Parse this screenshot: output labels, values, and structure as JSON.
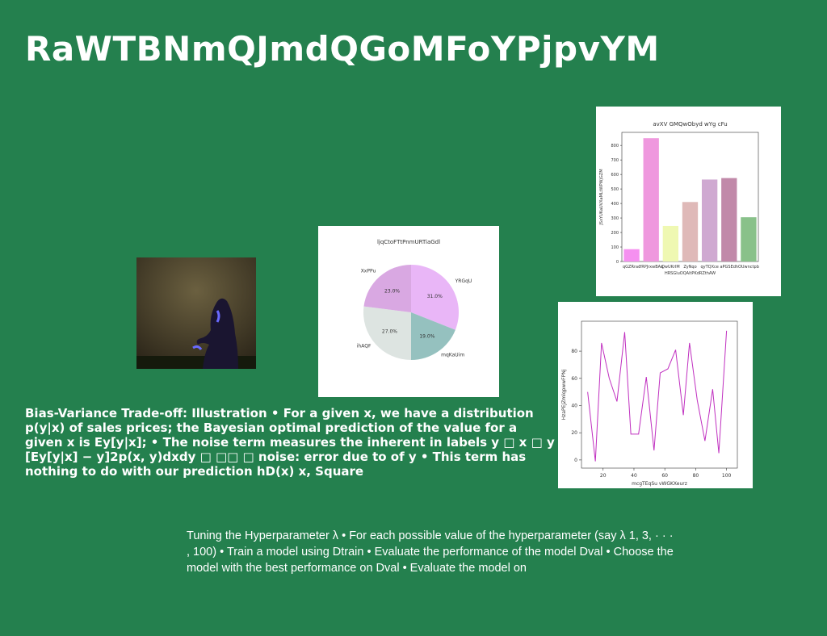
{
  "title": "RaWTBNmQJmdQGoMFoYPjpvYM",
  "text1": "Bias-Variance Trade-off: Illustration • For a given x, we have a distribution p(y|x) of sales prices; the Bayesian optimal prediction of the value for a given x is Ey[y|x]; • The noise term measures the inherent in labels y □ x □ y [Ey[y|x] − y]2p(x, y)dxdy □ □□ □ noise: error due to of y • This term has nothing to do with our prediction hD(x) x, Square",
  "text2": "Tuning the Hyperparameter λ • For each possible value of the hyperparameter (say λ 1, 3, · · · , 100) • Train a model using Dtrain • Evaluate the performance of the model Dval • Choose the model with the best performance on Dval • Evaluate the model on",
  "pie": {
    "type": "pie",
    "title": "ljqCtoFTtPnmURTiaGdl",
    "categories": [
      "YRGqU",
      "mqKaUim",
      "ihAQF",
      "XxPPu"
    ],
    "values": [
      31,
      19,
      27,
      23
    ],
    "value_labels": [
      "31.0%",
      "19.0%",
      "27.0%",
      "23.0%"
    ],
    "colors": [
      "#e9b6f7",
      "#95c1bf",
      "#dde4e1",
      "#d9a8e2"
    ]
  },
  "bar": {
    "type": "bar",
    "title": "avXV GMQwObyd wYg cFu",
    "x_label": "HRSGluOQAltPKdRZthAW",
    "y_label": "JSxYUKaUVXaMLtWPWjGZM",
    "categories": [
      "qGZRrao",
      "YRPJrxwBAq",
      "QwUKrIM",
      "ZyNqo",
      "qyTQXce",
      "aPGSEdh",
      "OUwnctpb"
    ],
    "values": [
      85,
      850,
      245,
      410,
      565,
      575,
      305
    ],
    "colors": [
      "#f590f0",
      "#ef98de",
      "#eff8b2",
      "#dfb9b8",
      "#cfa9d1",
      "#c189a9",
      "#89c18a"
    ],
    "ylim": [
      0,
      890
    ],
    "yticks": [
      0,
      100,
      200,
      300,
      400,
      500,
      600,
      700,
      800
    ]
  },
  "line": {
    "type": "line",
    "x_label": "mcgTEqSu vWGKXeurz",
    "y_label": "HzaPEJZmlqpwwFPNj",
    "color": "#c030c0",
    "x": [
      10,
      15,
      19,
      24,
      29,
      34,
      38,
      43,
      48,
      53,
      57,
      62,
      67,
      72,
      76,
      81,
      86,
      91,
      95,
      100
    ],
    "values": [
      50,
      -1,
      86,
      60,
      43,
      94,
      19,
      19,
      61,
      7,
      64,
      67,
      81,
      33,
      86,
      44,
      14,
      52,
      5,
      95
    ],
    "xlim": [
      6,
      107
    ],
    "ylim": [
      -6,
      102
    ],
    "xticks": [
      20,
      40,
      60,
      80,
      100
    ],
    "yticks": [
      0,
      20,
      40,
      60,
      80
    ]
  }
}
